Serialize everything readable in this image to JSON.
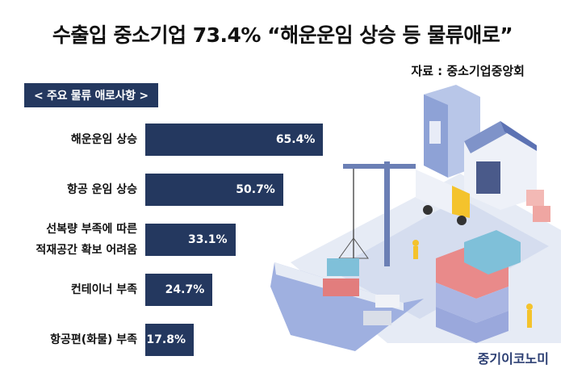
{
  "title": "수출입 중소기업 73.4% “해운운임 상승 등 물류애로”",
  "source": "자료 : 중소기업중앙회",
  "section_label": "< 주요 물류 애로사항 >",
  "brand": "중기이코노미",
  "colors": {
    "bar": "#24385f",
    "text": "#111111",
    "brand": "#2c3f73"
  },
  "chart_data": {
    "type": "bar",
    "orientation": "horizontal",
    "title": "수출입 중소기업 73.4% “해운운임 상승 등 물류애로”",
    "subtitle": "< 주요 물류 애로사항 >",
    "unit": "%",
    "categories": [
      [
        "해운운임 상승"
      ],
      [
        "항공 운임 상승"
      ],
      [
        "선복량 부족에 따른",
        "적재공간 확보 어려움"
      ],
      [
        "컨테이너 부족"
      ],
      [
        "항공편(화물) 부족"
      ]
    ],
    "values": [
      65.4,
      50.7,
      33.1,
      24.7,
      17.8
    ],
    "value_labels": [
      "65.4%",
      "50.7%",
      "33.1%",
      "24.7%",
      "17.8%"
    ],
    "xlim": [
      0,
      100
    ],
    "grid": false,
    "legend": "none"
  }
}
